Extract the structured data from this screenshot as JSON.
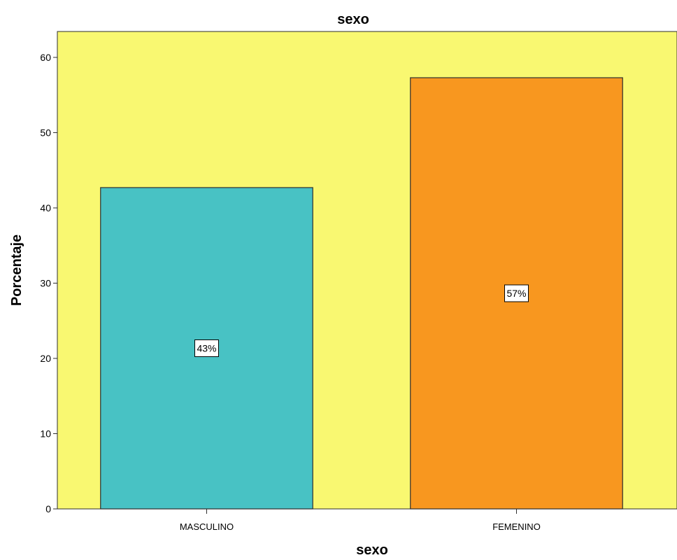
{
  "chart_data": {
    "type": "bar",
    "title": "sexo",
    "xlabel": "sexo",
    "ylabel": "Porcentaje",
    "categories": [
      "MASCULINO",
      "FEMENINO"
    ],
    "values": [
      42.7,
      57.3
    ],
    "data_labels": [
      "43%",
      "57%"
    ],
    "ylim": [
      0,
      63
    ],
    "yticks": [
      0,
      10,
      20,
      30,
      40,
      50,
      60
    ],
    "grid": false,
    "legend": "none",
    "colors": {
      "plot_background": "#f9f871",
      "bars": [
        "#48c2c4",
        "#f8971f"
      ],
      "bar_outline": "#2e2e2e"
    }
  }
}
